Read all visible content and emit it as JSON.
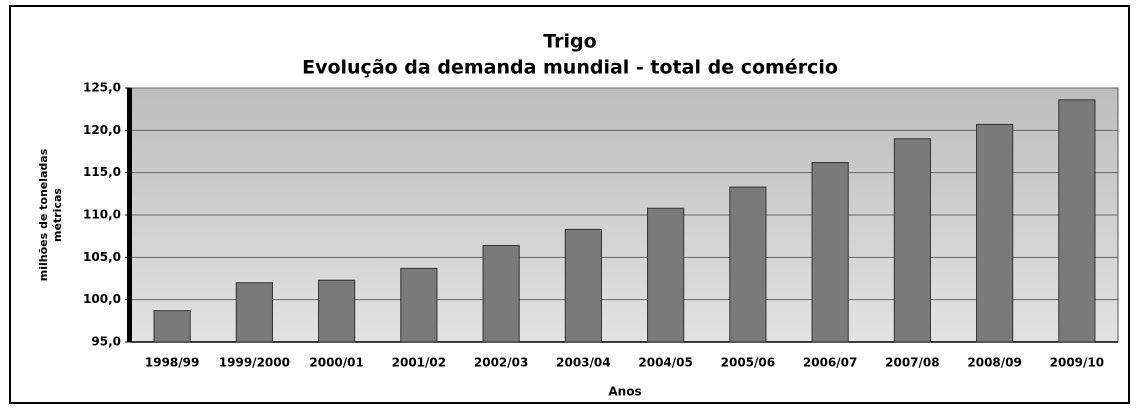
{
  "chart_data": {
    "type": "bar",
    "title": "Trigo",
    "subtitle": "Evolução da demanda mundial - total de comércio",
    "y_label": [
      "milhões de toneladas",
      "métricas"
    ],
    "x_label": "Anos",
    "categories": [
      "1998/99",
      "1999/2000",
      "2000/01",
      "2001/02",
      "2002/03",
      "2003/04",
      "2004/05",
      "2005/06",
      "2006/07",
      "2007/08",
      "2008/09",
      "2009/10"
    ],
    "values": [
      98.7,
      102.0,
      102.3,
      103.7,
      106.4,
      108.3,
      110.8,
      113.3,
      116.2,
      119.0,
      120.7,
      123.6
    ],
    "color": "#7a7a7a",
    "ylim": [
      95,
      125
    ],
    "yticks": [
      {
        "value": 95,
        "label": "95,0"
      },
      {
        "value": 100,
        "label": "100,0"
      },
      {
        "value": 105,
        "label": "105,0"
      },
      {
        "value": 110,
        "label": "110,0"
      },
      {
        "value": 115,
        "label": "115,0"
      },
      {
        "value": 120,
        "label": "120,0"
      },
      {
        "value": 125,
        "label": "125,0"
      }
    ],
    "grid": true
  }
}
